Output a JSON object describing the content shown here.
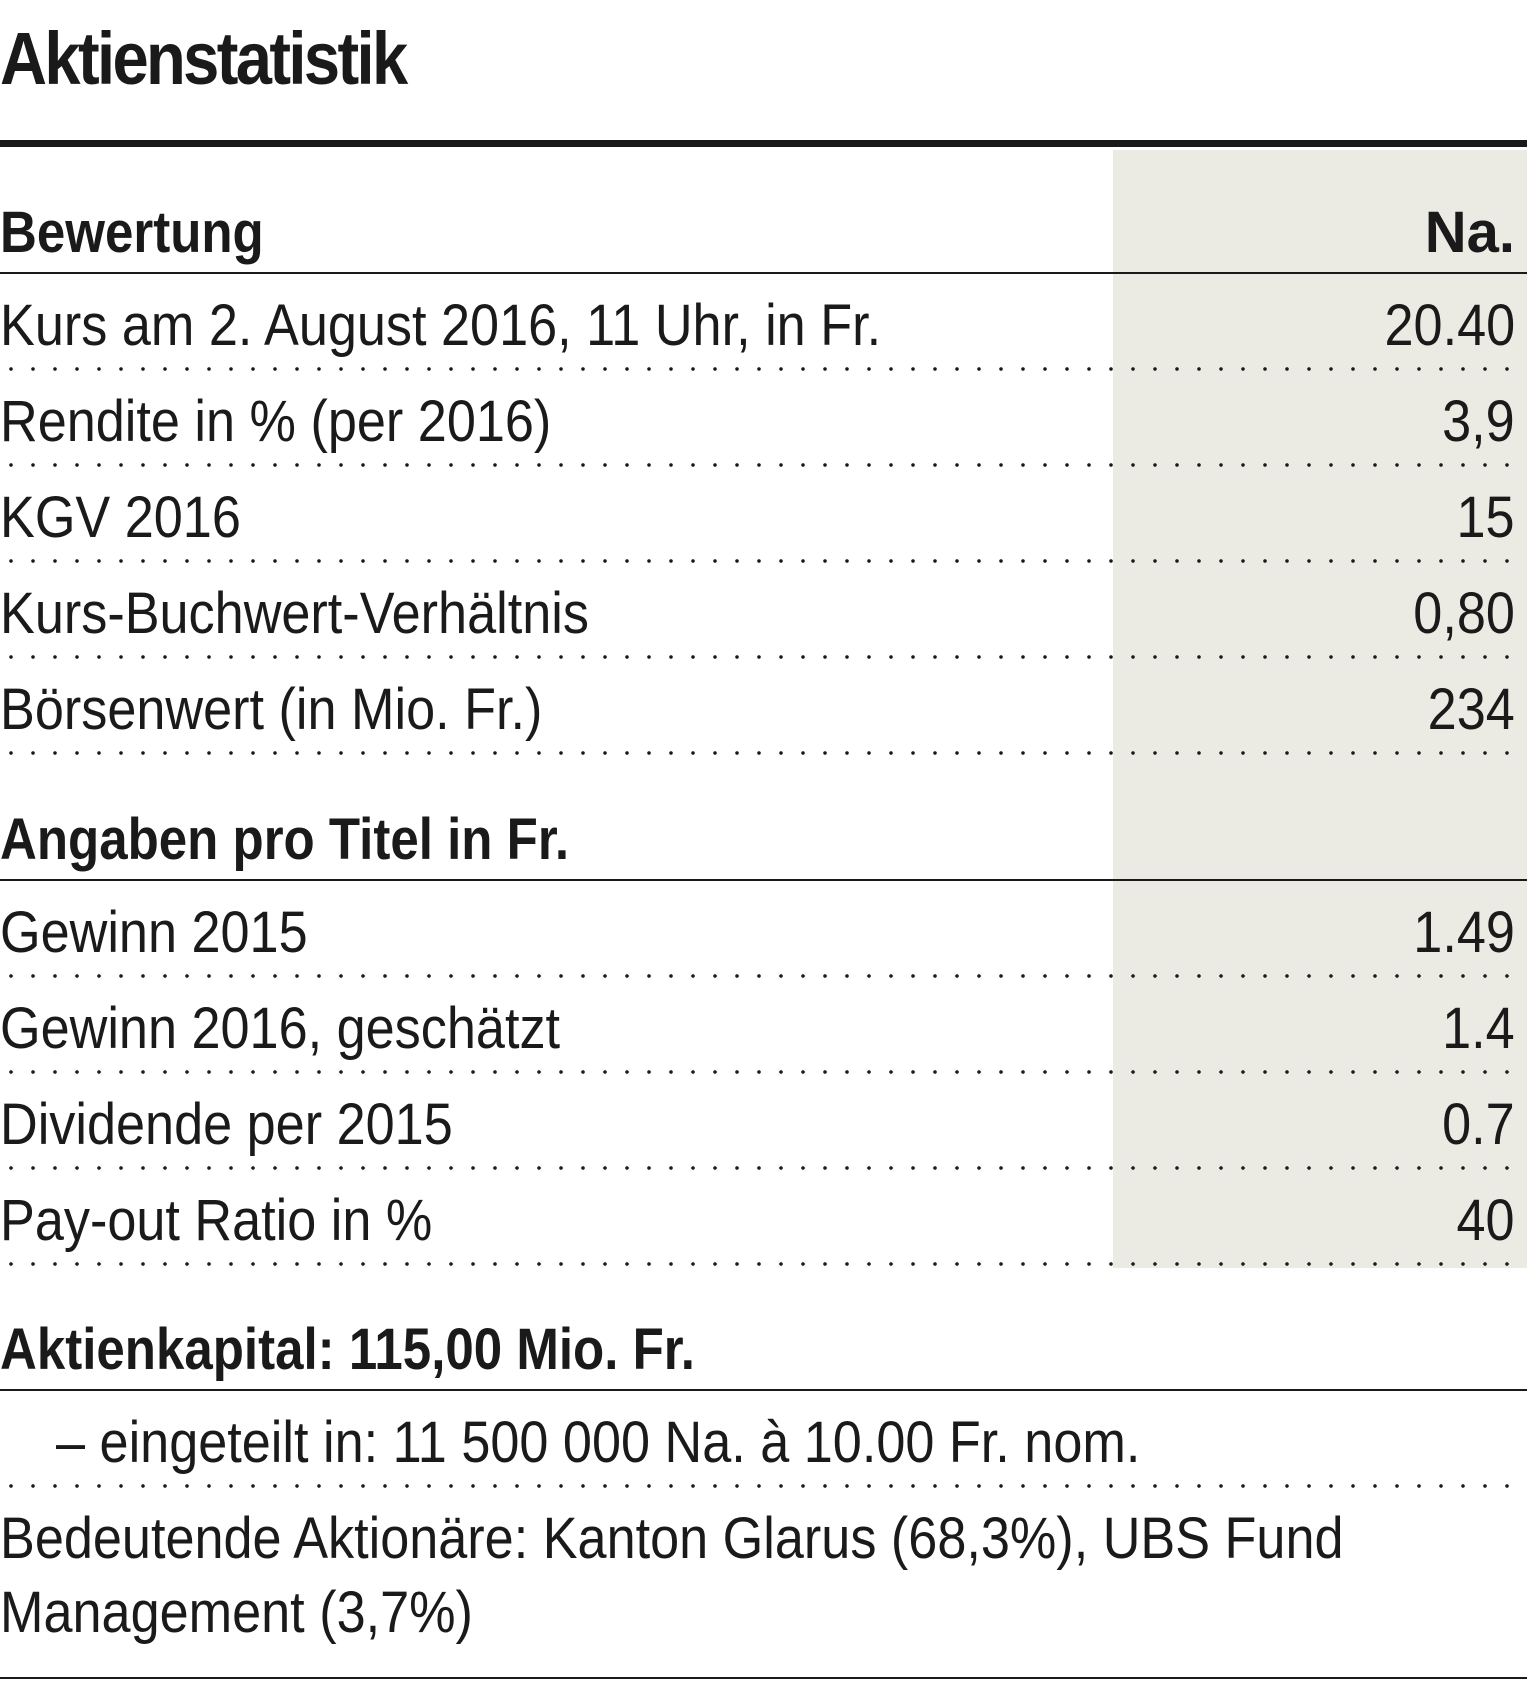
{
  "title": "Aktienstatistik",
  "sections": [
    {
      "heading": "Bewertung",
      "column": "Na.",
      "rows": [
        {
          "label": "Kurs am 2. August 2016, 11 Uhr, in Fr.",
          "value": "20.40"
        },
        {
          "label": "Rendite in % (per 2016)",
          "value": "3,9"
        },
        {
          "label": "KGV 2016",
          "value": "15"
        },
        {
          "label": "Kurs-Buchwert-Verhältnis",
          "value": "0,80"
        },
        {
          "label": "Börsenwert (in Mio. Fr.)",
          "value": "234"
        }
      ]
    },
    {
      "heading": "Angaben pro Titel in Fr.",
      "column": "",
      "rows": [
        {
          "label": "Gewinn 2015",
          "value": "1.49"
        },
        {
          "label": "Gewinn 2016, geschätzt",
          "value": "1.4"
        },
        {
          "label": "Dividende per 2015",
          "value": "0.7"
        },
        {
          "label": "Pay-out Ratio in %",
          "value": "40"
        }
      ]
    }
  ],
  "capital": {
    "heading": "Aktienkapital: 115,00 Mio. Fr.",
    "subdivision": "– eingeteilt in: 11 500 000 Na. à 10.00 Fr. nom.",
    "shareholders_line1": "Bedeutende Aktionäre: Kanton Glarus (68,3%), UBS Fund",
    "shareholders_line2": "Management (3,7%)"
  }
}
